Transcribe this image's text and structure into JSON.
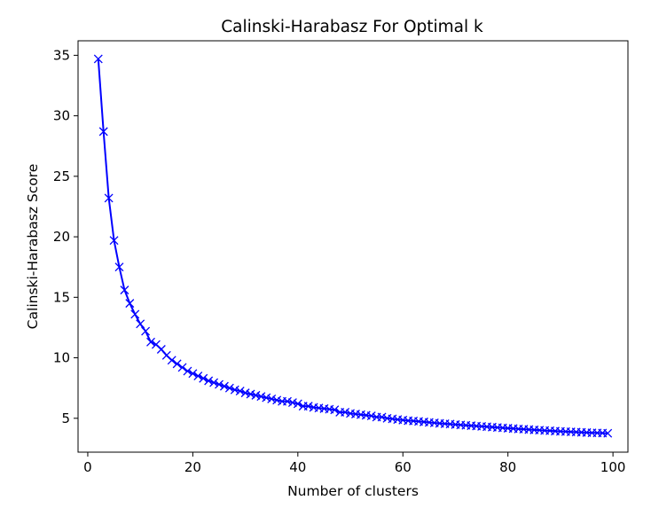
{
  "chart_data": {
    "type": "line",
    "title": "Calinski-Harabasz For Optimal k",
    "xlabel": "Number of clusters",
    "ylabel": "Calinski-Harabasz Score",
    "xlim": [
      -1.85,
      102.85
    ],
    "ylim": [
      2.2,
      36.2
    ],
    "xticks": [
      0,
      20,
      40,
      60,
      80,
      100
    ],
    "yticks": [
      5,
      10,
      15,
      20,
      25,
      30,
      35
    ],
    "grid": false,
    "legend": "none",
    "color": "#0000ff",
    "marker": "x",
    "series": [
      {
        "x": [
          2,
          3,
          4,
          5,
          6,
          7,
          8,
          9,
          10,
          11,
          12,
          13,
          14,
          15,
          16,
          17,
          18,
          19,
          20,
          21,
          22,
          23,
          24,
          25,
          26,
          27,
          28,
          29,
          30,
          31,
          32,
          33,
          34,
          35,
          36,
          37,
          38,
          39,
          40,
          41,
          42,
          43,
          44,
          45,
          46,
          47,
          48,
          49,
          50,
          51,
          52,
          53,
          54,
          55,
          56,
          57,
          58,
          59,
          60,
          61,
          62,
          63,
          64,
          65,
          66,
          67,
          68,
          69,
          70,
          71,
          72,
          73,
          74,
          75,
          76,
          77,
          78,
          79,
          80,
          81,
          82,
          83,
          84,
          85,
          86,
          87,
          88,
          89,
          90,
          91,
          92,
          93,
          94,
          95,
          96,
          97,
          98,
          99
        ],
        "values": [
          34.7,
          28.7,
          23.2,
          19.7,
          17.5,
          15.6,
          14.5,
          13.6,
          12.8,
          12.2,
          11.3,
          11.1,
          10.7,
          10.2,
          9.8,
          9.5,
          9.2,
          8.9,
          8.7,
          8.5,
          8.3,
          8.1,
          7.95,
          7.8,
          7.65,
          7.5,
          7.35,
          7.25,
          7.1,
          7.0,
          6.9,
          6.8,
          6.7,
          6.6,
          6.5,
          6.4,
          6.4,
          6.3,
          6.2,
          6.0,
          6.0,
          5.9,
          5.85,
          5.8,
          5.75,
          5.7,
          5.5,
          5.5,
          5.4,
          5.35,
          5.3,
          5.25,
          5.2,
          5.1,
          5.1,
          5.0,
          4.95,
          4.9,
          4.85,
          4.8,
          4.78,
          4.74,
          4.7,
          4.66,
          4.62,
          4.58,
          4.55,
          4.52,
          4.48,
          4.45,
          4.42,
          4.39,
          4.36,
          4.33,
          4.3,
          4.27,
          4.24,
          4.21,
          4.18,
          4.15,
          4.12,
          4.1,
          4.07,
          4.04,
          4.02,
          3.99,
          3.97,
          3.94,
          3.92,
          3.9,
          3.88,
          3.86,
          3.84,
          3.82,
          3.8,
          3.79,
          3.78,
          3.76
        ]
      }
    ]
  }
}
